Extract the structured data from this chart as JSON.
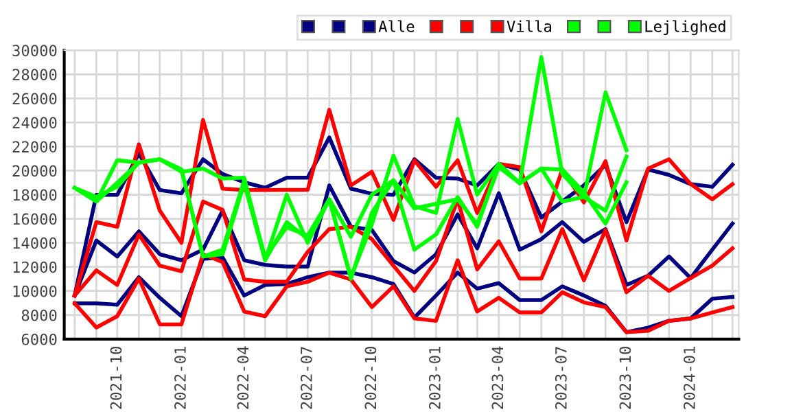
{
  "chart_data": {
    "type": "line",
    "x": [
      "2021-08",
      "2021-09",
      "2021-10",
      "2021-11",
      "2021-12",
      "2022-01",
      "2022-02",
      "2022-03",
      "2022-04",
      "2022-05",
      "2022-06",
      "2022-07",
      "2022-08",
      "2022-09",
      "2022-10",
      "2022-11",
      "2022-12",
      "2023-01",
      "2023-02",
      "2023-03",
      "2023-04",
      "2023-05",
      "2023-06",
      "2023-07",
      "2023-08",
      "2023-09",
      "2023-10",
      "2023-11",
      "2023-12",
      "2024-01",
      "2024-02",
      "2024-03"
    ],
    "series": [
      {
        "color": "#000080",
        "values": [
          9620,
          17990,
          17990,
          21430,
          18380,
          18120,
          20940,
          19720,
          19030,
          18570,
          19410,
          19410,
          22760,
          18500,
          18080,
          17990,
          20940,
          19410,
          19340,
          18770,
          20560,
          20100,
          16100,
          17430,
          18770,
          20480,
          15720,
          20100,
          19640,
          18880,
          18650,
          20480
        ]
      },
      {
        "color": "#000080",
        "values": [
          9620,
          14190,
          12860,
          14950,
          13050,
          12550,
          13430,
          16670,
          12550,
          12170,
          12020,
          12020,
          18770,
          15330,
          15070,
          12480,
          11530,
          13050,
          16360,
          13540,
          18120,
          13430,
          14310,
          15720,
          14080,
          15140,
          10500,
          11260,
          12860,
          11070,
          13430,
          15600
        ]
      },
      {
        "name": "Alle",
        "color": "#000080",
        "values": [
          8970,
          8970,
          8860,
          11140,
          9430,
          7900,
          12660,
          12780,
          9620,
          10500,
          10570,
          11140,
          11520,
          11520,
          11140,
          10570,
          7790,
          9620,
          11530,
          10190,
          10650,
          9240,
          9240,
          10380,
          9620,
          8750,
          6570,
          6950,
          7520,
          7710,
          9350,
          9500
        ]
      },
      {
        "color": "#ff0000",
        "values": [
          9620,
          15720,
          15330,
          22190,
          16670,
          14000,
          24210,
          18500,
          18380,
          18380,
          18400,
          18400,
          25050,
          18770,
          19900,
          15910,
          20860,
          18650,
          20860,
          16480,
          20560,
          20290,
          14950,
          20100,
          17360,
          20790,
          14190,
          20170,
          20940,
          18880,
          17620,
          18880
        ]
      },
      {
        "color": "#ff0000",
        "values": [
          9620,
          11710,
          10500,
          14690,
          12100,
          11640,
          17430,
          16740,
          10950,
          10760,
          10760,
          13240,
          15140,
          15330,
          14310,
          12100,
          10000,
          12480,
          17620,
          11790,
          14120,
          11030,
          11030,
          15140,
          10880,
          15070,
          9890,
          11260,
          10000,
          11070,
          12100,
          13540
        ]
      },
      {
        "name": "Villa",
        "color": "#ff0000",
        "values": [
          8970,
          6960,
          7900,
          11030,
          7220,
          7220,
          13050,
          12400,
          8290,
          7900,
          10380,
          10760,
          11520,
          10950,
          8660,
          10380,
          7710,
          7520,
          12550,
          8290,
          9430,
          8210,
          8210,
          9890,
          9050,
          8660,
          6570,
          6690,
          7520,
          7710,
          8210,
          8660
        ]
      },
      {
        "color": "#00ff00",
        "values": [
          18570,
          17430,
          20860,
          20670,
          20940,
          19900,
          20170,
          19340,
          19410,
          12550,
          17990,
          14000,
          17620,
          11140,
          15530,
          21240,
          17050,
          16480,
          24290,
          18000,
          20560,
          18950,
          29430,
          19720,
          17810,
          26500,
          21700,
          null,
          null,
          null,
          null,
          null
        ]
      },
      {
        "color": "#00ff00",
        "values": [
          18570,
          17810,
          18650,
          20670,
          20940,
          20100,
          12860,
          13050,
          18950,
          12550,
          15720,
          14310,
          17620,
          14500,
          18000,
          19200,
          16860,
          17240,
          17620,
          15530,
          20290,
          18950,
          20170,
          17430,
          17810,
          16670,
          21160,
          null,
          null,
          null,
          null,
          null
        ]
      },
      {
        "name": "Lejlighed",
        "color": "#00ff00",
        "values": [
          18570,
          17430,
          19000,
          20670,
          20940,
          20100,
          12860,
          13430,
          19200,
          12800,
          15300,
          14600,
          17620,
          11000,
          16500,
          19200,
          13430,
          14690,
          17810,
          15330,
          20560,
          18950,
          20170,
          20100,
          18190,
          15600,
          19030,
          null,
          null,
          null,
          null,
          null
        ]
      }
    ],
    "xlim": [
      "2021-07-17",
      "2024-03-10"
    ],
    "xticks": [
      {
        "value": "2021-08",
        "label": null
      },
      {
        "value": "2021-09",
        "label": null
      },
      {
        "value": "2021-10",
        "label": "2021-10"
      },
      {
        "value": "2021-11",
        "label": null
      },
      {
        "value": "2021-12",
        "label": null
      },
      {
        "value": "2022-01",
        "label": "2022-01"
      },
      {
        "value": "2022-02",
        "label": null
      },
      {
        "value": "2022-03",
        "label": null
      },
      {
        "value": "2022-04",
        "label": "2022-04"
      },
      {
        "value": "2022-05",
        "label": null
      },
      {
        "value": "2022-06",
        "label": null
      },
      {
        "value": "2022-07",
        "label": "2022-07"
      },
      {
        "value": "2022-08",
        "label": null
      },
      {
        "value": "2022-09",
        "label": null
      },
      {
        "value": "2022-10",
        "label": "2022-10"
      },
      {
        "value": "2022-11",
        "label": null
      },
      {
        "value": "2022-12",
        "label": null
      },
      {
        "value": "2023-01",
        "label": "2023-01"
      },
      {
        "value": "2023-02",
        "label": null
      },
      {
        "value": "2023-03",
        "label": null
      },
      {
        "value": "2023-04",
        "label": "2023-04"
      },
      {
        "value": "2023-05",
        "label": null
      },
      {
        "value": "2023-06",
        "label": null
      },
      {
        "value": "2023-07",
        "label": "2023-07"
      },
      {
        "value": "2023-08",
        "label": null
      },
      {
        "value": "2023-09",
        "label": null
      },
      {
        "value": "2023-10",
        "label": "2023-10"
      },
      {
        "value": "2023-11",
        "label": null
      },
      {
        "value": "2023-12",
        "label": null
      },
      {
        "value": "2024-01",
        "label": "2024-01"
      },
      {
        "value": "2024-02",
        "label": null
      },
      {
        "value": "2024-03",
        "label": null
      }
    ],
    "ylim": [
      6000,
      30000
    ],
    "yticks": [
      6000,
      8000,
      10000,
      12000,
      14000,
      16000,
      18000,
      20000,
      22000,
      24000,
      26000,
      28000,
      30000
    ],
    "grid": true,
    "legend": "top right",
    "marker": "none",
    "line_style": "solid"
  }
}
